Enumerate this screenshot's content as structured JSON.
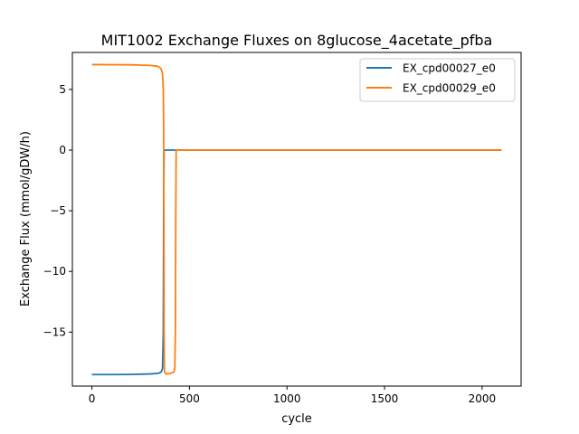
{
  "chart_data": {
    "type": "line",
    "title": "MIT1002 Exchange Fluxes on 8glucose_4acetate_pfba",
    "xlabel": "cycle",
    "ylabel": "Exchange Flux (mmol/gDW/h)",
    "xlim": [
      -100,
      2200
    ],
    "ylim": [
      -19.45,
      8.05
    ],
    "xticks": [
      0,
      500,
      1000,
      1500,
      2000
    ],
    "xtick_labels": [
      "0",
      "500",
      "1000",
      "1500",
      "2000"
    ],
    "yticks": [
      -15,
      -10,
      -5,
      0,
      5
    ],
    "ytick_labels": [
      "−15",
      "−10",
      "−5",
      "0",
      "5"
    ],
    "grid": false,
    "legend_position": "top-right",
    "series": [
      {
        "name": "EX_cpd00027_e0",
        "color": "#1f77b4",
        "x": [
          0,
          100,
          200,
          300,
          340,
          355,
          362,
          366,
          368,
          370,
          372,
          400,
          500,
          1000,
          1500,
          2100
        ],
        "y": [
          -18.5,
          -18.5,
          -18.49,
          -18.45,
          -18.4,
          -18.3,
          -18.0,
          -15,
          -5,
          0,
          0,
          0,
          0,
          0,
          0,
          0
        ]
      },
      {
        "name": "EX_cpd00029_e0",
        "color": "#ff7f0e",
        "x": [
          0,
          100,
          200,
          300,
          340,
          355,
          362,
          366,
          368,
          369,
          370,
          372,
          380,
          400,
          420,
          425,
          428,
          430,
          432,
          500,
          1000,
          1500,
          2100
        ],
        "y": [
          7.05,
          7.04,
          7.03,
          6.98,
          6.9,
          6.7,
          6.3,
          5,
          2,
          -5,
          -15,
          -18.3,
          -18.45,
          -18.42,
          -18.3,
          -18.0,
          -15,
          -5,
          0,
          0,
          0,
          0,
          0
        ]
      }
    ]
  }
}
